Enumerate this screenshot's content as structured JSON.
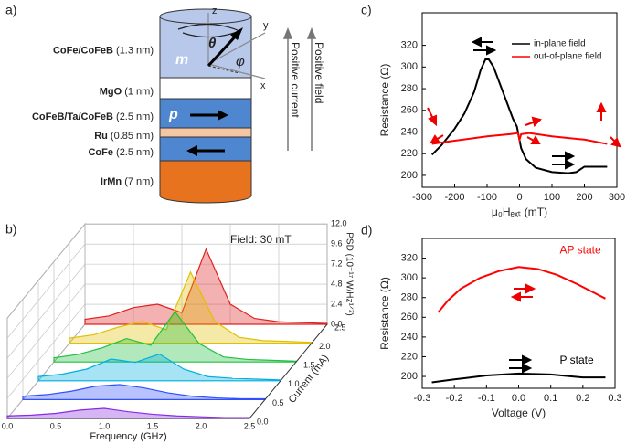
{
  "diagram": {
    "panel_label": "a)",
    "layers": [
      {
        "name": "CoFe/CoFeB",
        "thickness": "(1.3 nm)",
        "color": "#b8c8ea"
      },
      {
        "name": "MgO",
        "thickness": "(1 nm)",
        "color": "#ffffff"
      },
      {
        "name": "CoFeB/Ta/CoFeB",
        "thickness": "(2.5 nm)",
        "color": "#4f86d0"
      },
      {
        "name": "Ru",
        "thickness": "(0.85 nm)",
        "color": "#f4c6a4"
      },
      {
        "name": "CoFe",
        "thickness": "(2.5 nm)",
        "color": "#4f86d0"
      },
      {
        "name": "IrMn",
        "thickness": "(7 nm)",
        "color": "#e8731e"
      }
    ],
    "m_symbol": "m",
    "p_symbol": "p",
    "theta": "θ",
    "phi": "φ",
    "axis_x": "x",
    "axis_y": "y",
    "axis_z": "z",
    "current_label": "Positive current",
    "field_label": "Positive field"
  },
  "waterfall": {
    "panel_label": "b)",
    "annotation": "Field: 30 mT",
    "xlabel": "Frequency (GHz)",
    "ylabel": "Current (mA)",
    "zlabel": "PSD (10⁻¹⁷ W/Hz¹ᐟ²)",
    "xticks": [
      {
        "value": 0,
        "label": "0.0"
      },
      0.5,
      {
        "value": 1,
        "label": "1.0"
      },
      1.5,
      {
        "value": 2,
        "label": "2.0"
      },
      2.5
    ],
    "yticks": [
      {
        "value": 0,
        "label": "0.0"
      },
      0.5,
      {
        "value": 1,
        "label": "1.0"
      },
      1.5,
      {
        "value": 2,
        "label": "2.0"
      },
      2.5
    ],
    "zticks": [
      {
        "value": 0,
        "label": "0.0"
      },
      2.4,
      4.8,
      7.2,
      9.6,
      {
        "value": 12,
        "label": "12.0"
      }
    ],
    "xlim": [
      0,
      2.5
    ],
    "ylim": [
      0,
      2.5
    ],
    "zlim": [
      0,
      12
    ],
    "frequencies": [
      0,
      0.25,
      0.5,
      0.75,
      1,
      1.25,
      1.5,
      1.75,
      2,
      2.25,
      2.5
    ],
    "spectra": [
      {
        "current": 0,
        "color": "#8a2be2",
        "values": [
          0.3,
          0.4,
          0.6,
          1.0,
          1.2,
          0.8,
          0.5,
          0.3,
          0.2,
          0.1,
          0.1
        ]
      },
      {
        "current": 0.5,
        "color": "#3050ff",
        "values": [
          0.4,
          0.6,
          1.0,
          1.6,
          1.8,
          1.4,
          0.8,
          0.4,
          0.2,
          0.1,
          0.1
        ]
      },
      {
        "current": 1,
        "color": "#00b0e0",
        "values": [
          0.5,
          0.8,
          1.4,
          2.6,
          2.2,
          3.2,
          1.4,
          0.5,
          0.3,
          0.2,
          0.1
        ]
      },
      {
        "current": 1.5,
        "color": "#20c040",
        "values": [
          0.5,
          0.9,
          1.7,
          2.8,
          2.0,
          6.0,
          2.2,
          0.6,
          0.3,
          0.2,
          0.1
        ]
      },
      {
        "current": 2,
        "color": "#e0c000",
        "values": [
          0.6,
          1.0,
          1.9,
          2.6,
          1.6,
          8.5,
          2.6,
          0.7,
          0.3,
          0.2,
          0.1
        ]
      },
      {
        "current": 2.5,
        "color": "#e02020",
        "values": [
          0.6,
          1.0,
          2.0,
          2.4,
          1.4,
          9.0,
          2.4,
          0.7,
          0.3,
          0.2,
          0.1
        ]
      }
    ]
  },
  "chart_data": [
    {
      "type": "line",
      "panel_label": "c)",
      "xlabel": "μ₀Hₑₓₜ (mT)",
      "ylabel": "Resistance (Ω)",
      "xlim": [
        -300,
        300
      ],
      "xticks": [
        -300,
        -200,
        -100,
        0,
        100,
        200,
        300
      ],
      "ylim": [
        189,
        350
      ],
      "yticks": [
        200,
        220,
        240,
        260,
        280,
        300,
        320
      ],
      "legend": "top-right",
      "series": [
        {
          "name": "in-plane field",
          "color": "#000000",
          "x": [
            -270,
            -240,
            -200,
            -170,
            -140,
            -120,
            -105,
            -95,
            -80,
            -60,
            -40,
            -20,
            -8,
            -3,
            5,
            20,
            50,
            100,
            150,
            175,
            200,
            270
          ],
          "values": [
            219,
            228,
            243,
            257,
            277,
            297,
            307,
            307,
            300,
            284,
            268,
            252,
            245,
            237,
            225,
            215,
            207,
            203,
            202,
            203,
            208,
            208
          ]
        },
        {
          "name": "out-of-plane field",
          "color": "#ff0000",
          "x": [
            -270,
            -200,
            -100,
            -30,
            -5,
            0,
            5,
            30,
            100,
            200,
            270
          ],
          "values": [
            229,
            232,
            236,
            238,
            239,
            233,
            238,
            239,
            236,
            233,
            229
          ]
        }
      ]
    },
    {
      "type": "line",
      "panel_label": "d)",
      "xlabel": "Voltage (V)",
      "ylabel": "Resistance (Ω)",
      "xlim": [
        -0.3,
        0.3
      ],
      "xticks": [
        -0.3,
        -0.2,
        -0.1,
        {
          "value": 0,
          "label": "0.0"
        },
        0.1,
        0.2,
        0.3
      ],
      "ylim": [
        188,
        340
      ],
      "yticks": [
        200,
        220,
        240,
        260,
        280,
        300,
        320
      ],
      "series": [
        {
          "name": "AP state",
          "color": "#ff0000",
          "x": [
            -0.25,
            -0.22,
            -0.18,
            -0.12,
            -0.06,
            0,
            0.06,
            0.12,
            0.18,
            0.24,
            0.27
          ],
          "values": [
            265,
            277,
            289,
            300,
            307,
            311,
            309,
            303,
            294,
            284,
            279
          ]
        },
        {
          "name": "P state",
          "color": "#000000",
          "x": [
            -0.27,
            -0.2,
            -0.1,
            0,
            0.1,
            0.2,
            0.27
          ],
          "values": [
            194,
            197,
            201,
            203,
            202,
            199,
            199
          ]
        }
      ]
    }
  ]
}
